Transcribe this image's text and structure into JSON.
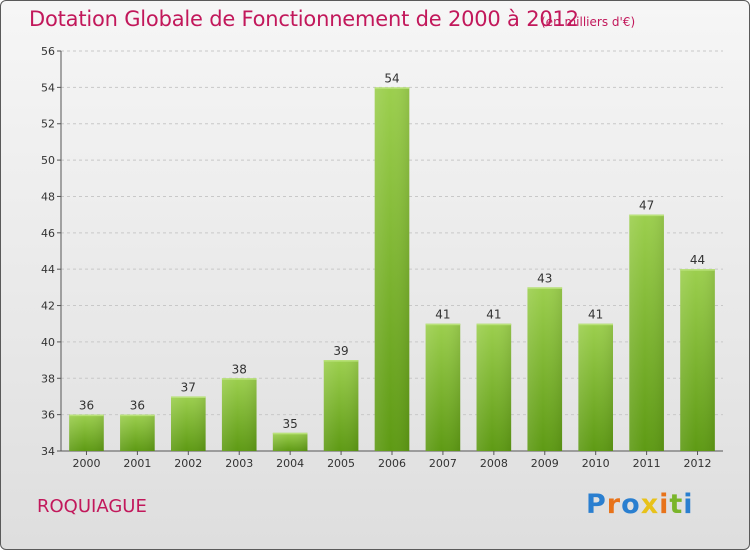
{
  "title": "Dotation Globale de Fonctionnement de 2000 à 2012",
  "subtitle": "(en milliers d'€)",
  "commune": "ROQUIAGUE",
  "logo": {
    "text": "Proxiti",
    "letter_colors": [
      "#2a7fd0",
      "#e8731a",
      "#2a7fd0",
      "#e8c21a",
      "#e8731a",
      "#7ab52a",
      "#2a7fd0"
    ]
  },
  "colors": {
    "accent": "#c2185b",
    "bar_top": "#9ccf4e",
    "bar_bottom": "#5e9a14",
    "grid": "#c8c8c8"
  },
  "chart_data": {
    "type": "bar",
    "categories": [
      "2000",
      "2001",
      "2002",
      "2003",
      "2004",
      "2005",
      "2006",
      "2007",
      "2008",
      "2009",
      "2010",
      "2011",
      "2012"
    ],
    "values": [
      36,
      36,
      37,
      38,
      35,
      39,
      54,
      41,
      41,
      43,
      41,
      47,
      44
    ],
    "title": "Dotation Globale de Fonctionnement de 2000 à 2012",
    "subtitle": "(en milliers d'€)",
    "xlabel": "",
    "ylabel": "",
    "ylim": [
      34,
      56
    ],
    "yticks": [
      34,
      36,
      38,
      40,
      42,
      44,
      46,
      48,
      50,
      52,
      54,
      56
    ],
    "grid": true,
    "data_labels": true
  }
}
